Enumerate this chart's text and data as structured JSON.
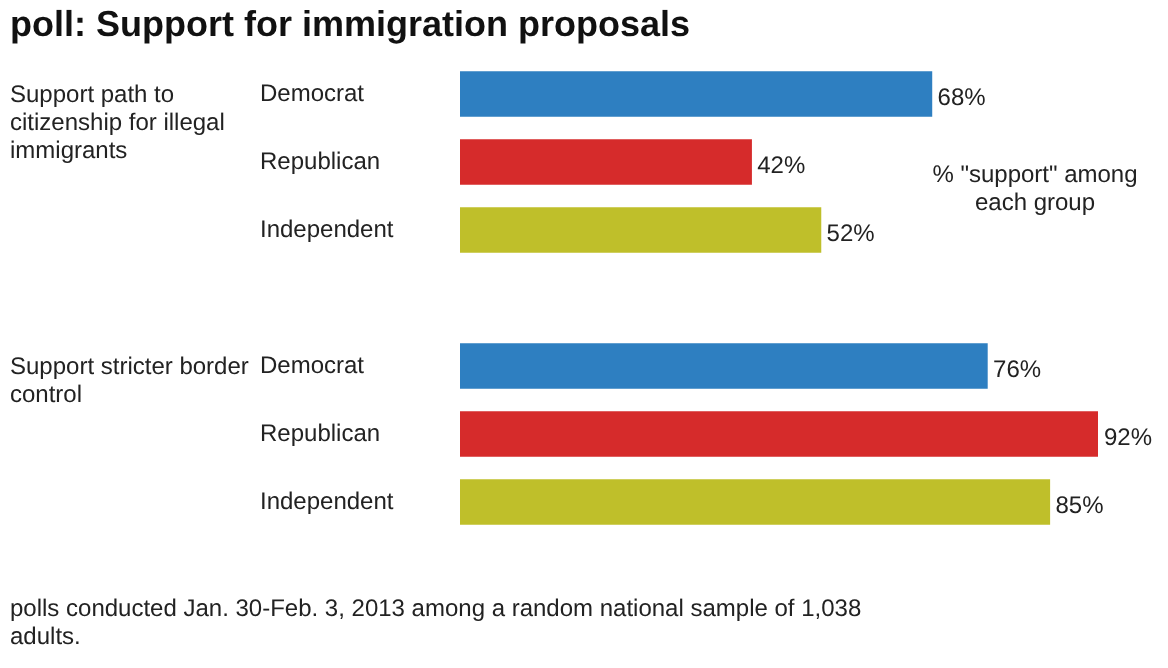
{
  "chart_data": {
    "type": "bar",
    "orientation": "horizontal",
    "title": "poll: Support for immigration proposals",
    "categories": [
      "Democrat",
      "Republican",
      "Independent",
      null,
      "Democrat",
      "Republican",
      "Independent"
    ],
    "values": [
      68,
      42,
      52,
      null,
      76,
      92,
      85
    ],
    "colors": [
      "#2e7fc1",
      "#d62b2b",
      "#bfbf2a",
      null,
      "#2e7fc1",
      "#d62b2b",
      "#bfbf2a"
    ],
    "value_labels": [
      "68%",
      "42%",
      "52%",
      null,
      "76%",
      "92%",
      "85%"
    ],
    "annotations": [
      "Support path to citizenship for illegal immigrants",
      "Support stricter border control",
      "% \"support\" among each group",
      "polls conducted Jan. 30-Feb. 3, 2013 among a random national sample of 1,038 adults."
    ]
  }
}
